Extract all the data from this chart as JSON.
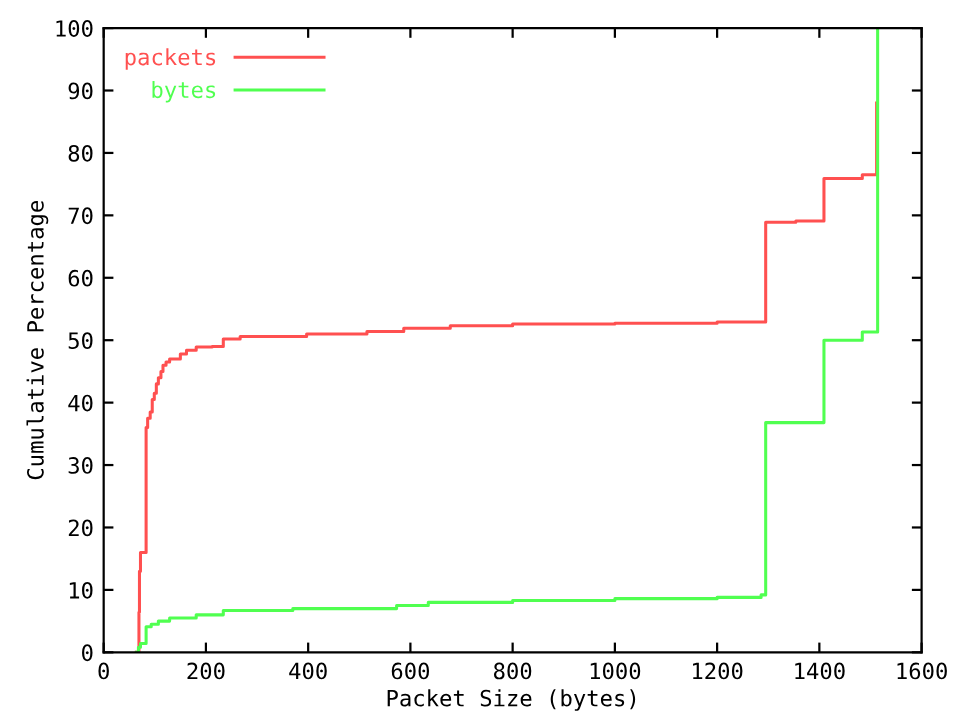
{
  "chart_data": {
    "type": "step",
    "xlabel": "Packet Size (bytes)",
    "ylabel": "Cumulative Percentage",
    "xlim": [
      0,
      1600
    ],
    "ylim": [
      0,
      100
    ],
    "xticks": [
      0,
      200,
      400,
      600,
      800,
      1000,
      1200,
      1400,
      1600
    ],
    "yticks": [
      0,
      10,
      20,
      30,
      40,
      50,
      60,
      70,
      80,
      90,
      100
    ],
    "grid": false,
    "legend": "top left",
    "marker": "none",
    "line_style": "solid",
    "series": [
      {
        "name": "packets",
        "color": "#ff5050",
        "x": [
          64,
          69,
          70,
          72,
          83,
          86,
          91,
          95,
          99,
          103,
          107,
          112,
          116,
          122,
          129,
          150,
          162,
          181,
          212,
          234,
          267,
          397,
          515,
          587,
          678,
          800,
          1000,
          1200,
          1295,
          1354,
          1409,
          1484,
          1512,
          1512
        ],
        "values": [
          0,
          6.4,
          13,
          16,
          36,
          37.5,
          38.5,
          40.5,
          41.5,
          43,
          44,
          45,
          46,
          46.5,
          47,
          47.8,
          48.4,
          48.9,
          49,
          50.2,
          50.6,
          51,
          51.4,
          51.9,
          52.3,
          52.6,
          52.7,
          52.9,
          68.9,
          69.1,
          75.9,
          76.5,
          76.5,
          88
        ]
      },
      {
        "name": "bytes",
        "color": "#50ff50",
        "x": [
          64,
          68,
          72,
          83,
          93,
          107,
          129,
          181,
          234,
          370,
          573,
          635,
          800,
          1000,
          1200,
          1286,
          1295,
          1409,
          1484,
          1514,
          1514
        ],
        "values": [
          0,
          0.8,
          1.4,
          4.1,
          4.5,
          5,
          5.5,
          6,
          6.7,
          7,
          7.5,
          8,
          8.3,
          8.6,
          8.8,
          9.2,
          36.8,
          50,
          51.3,
          51.3,
          100
        ]
      }
    ]
  }
}
